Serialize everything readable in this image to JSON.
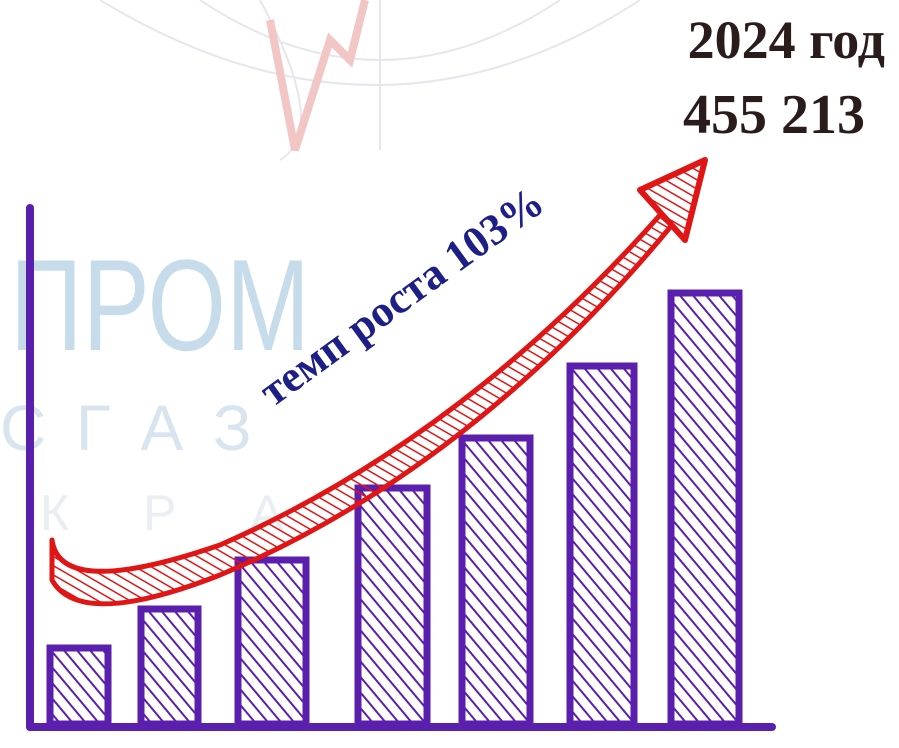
{
  "header": {
    "year": "2024 год",
    "value": "455 213"
  },
  "arrow_label": "темп роста 103%",
  "watermark": [
    "ПРОМ",
    "С Г А З",
    "К Р А"
  ]
}
